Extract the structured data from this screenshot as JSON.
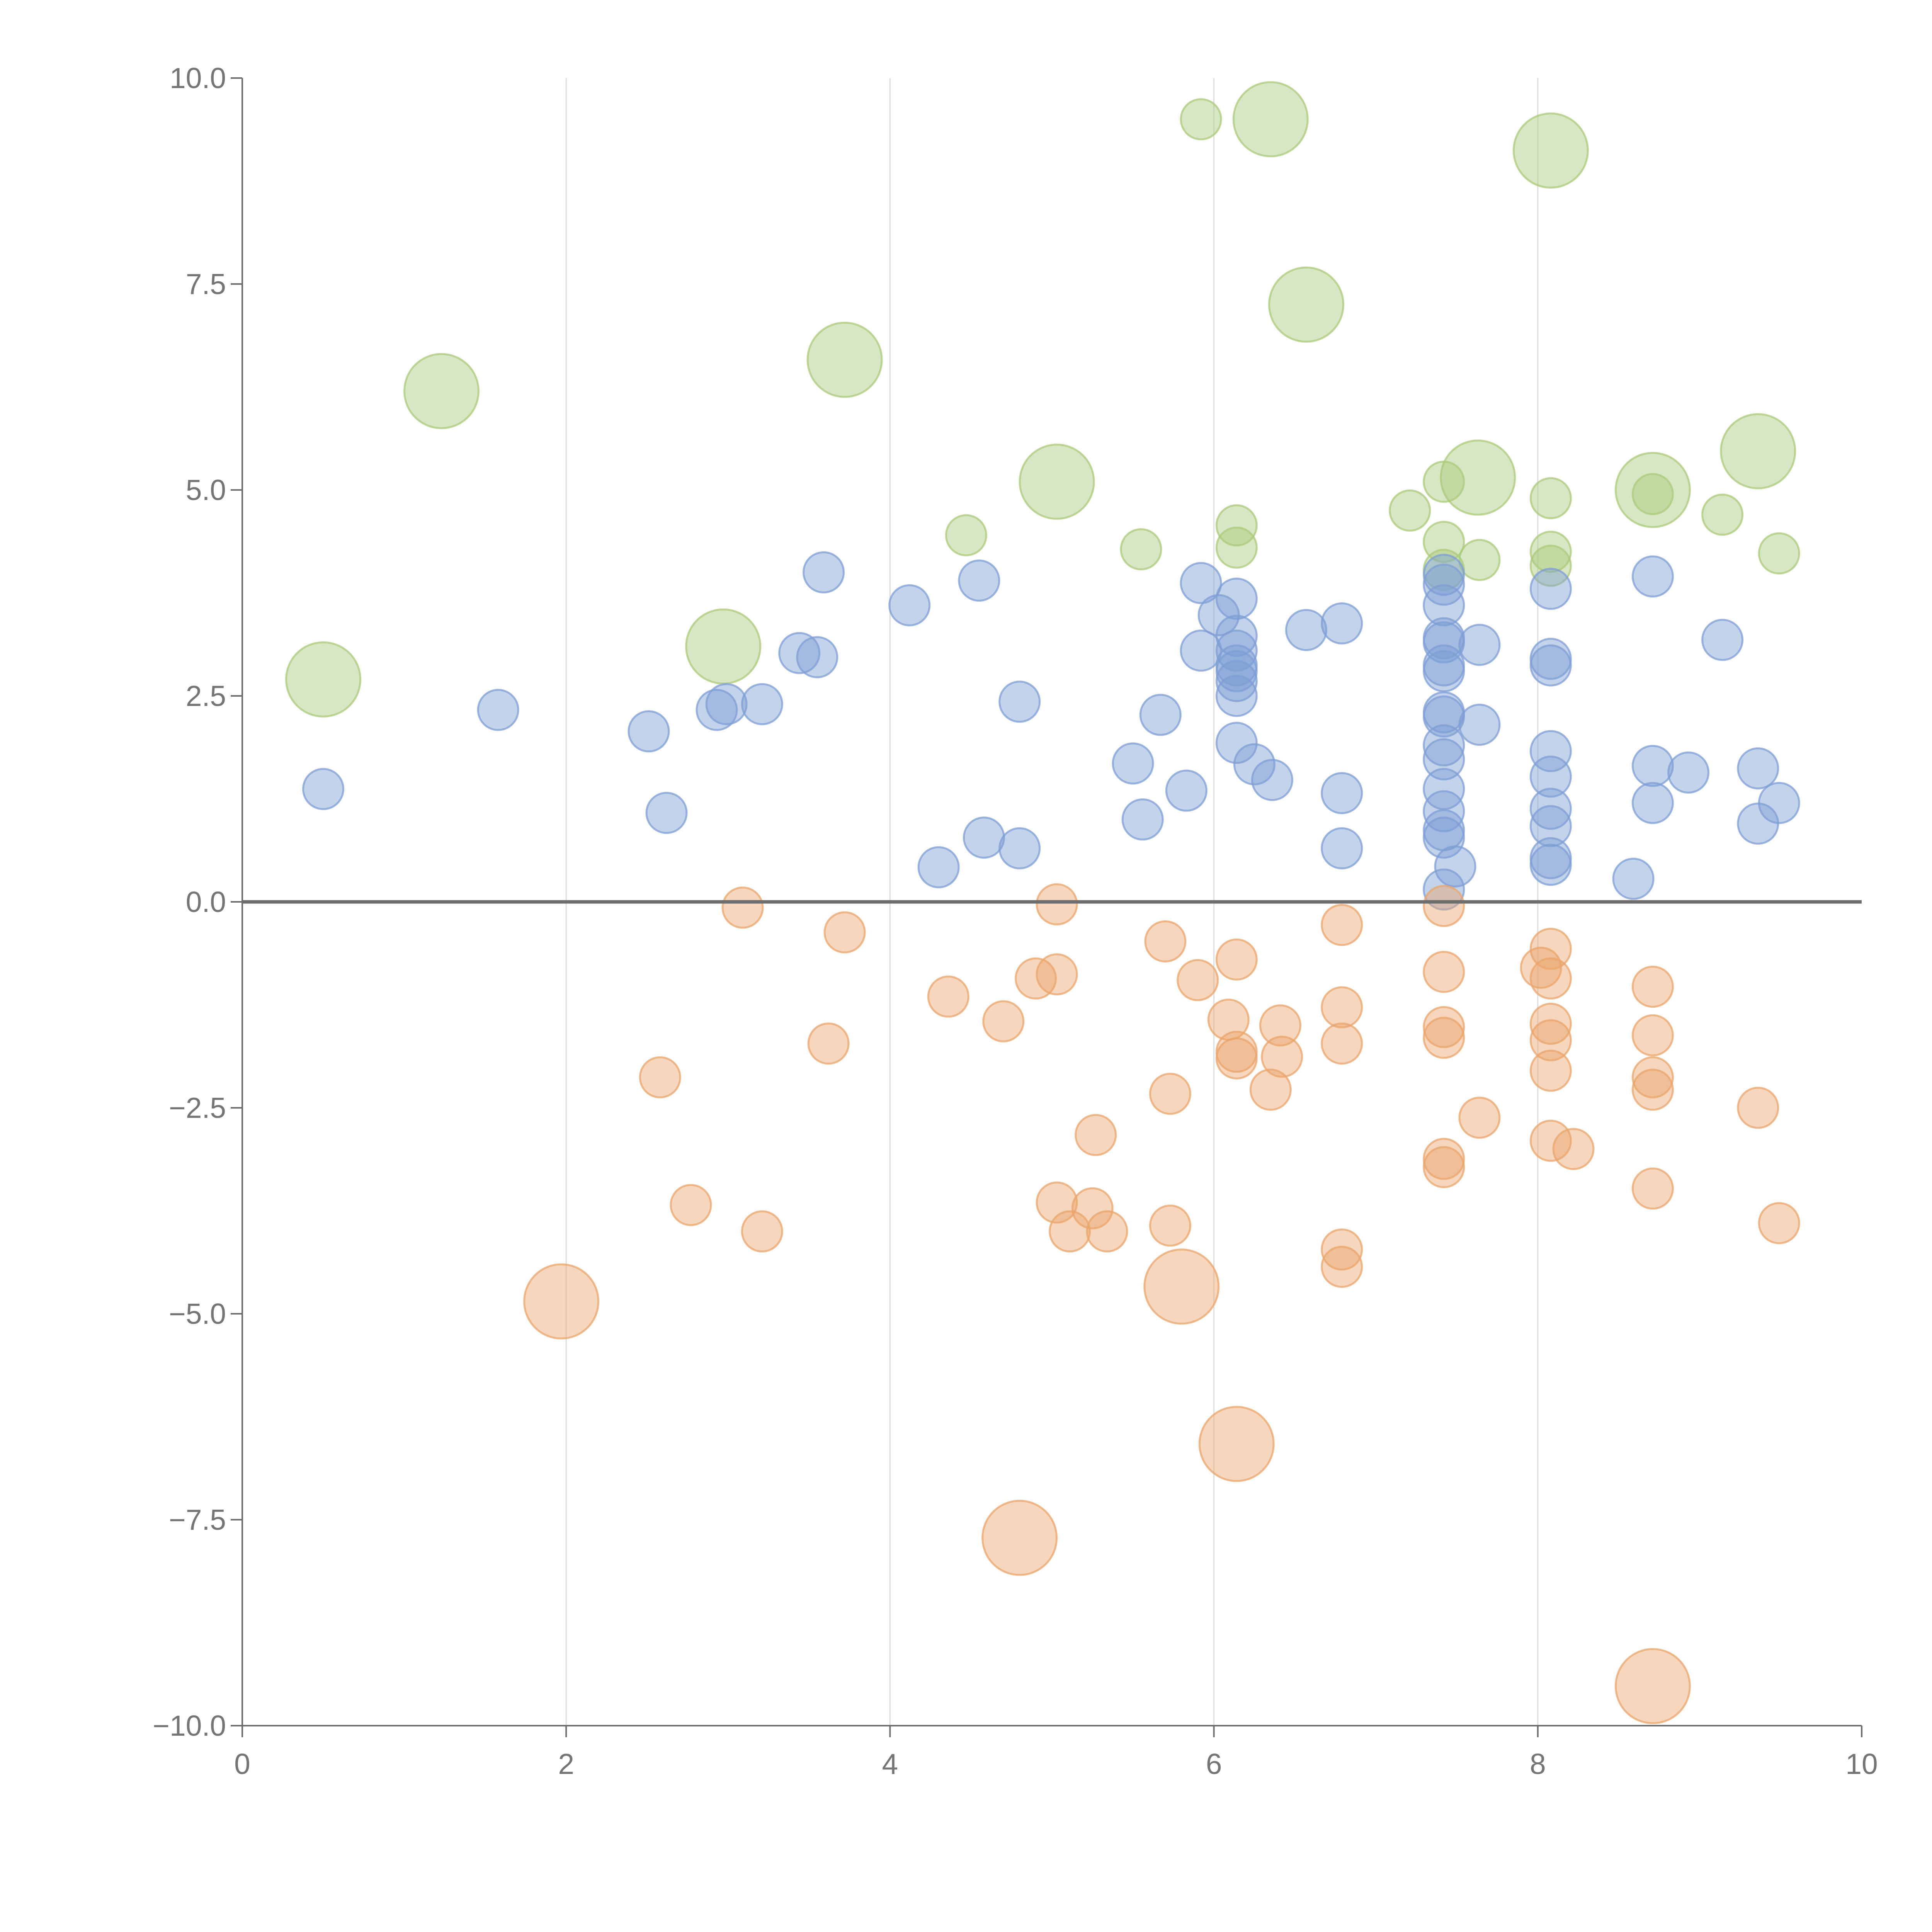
{
  "chart_data": {
    "type": "scatter",
    "title": "",
    "xlabel": "",
    "ylabel": "",
    "xlim": [
      0,
      10
    ],
    "ylim": [
      -10,
      10
    ],
    "x_ticks": [
      0,
      2,
      4,
      6,
      8,
      10
    ],
    "x_tick_labels": [
      "0",
      "2",
      "4",
      "6",
      "8",
      "10"
    ],
    "y_ticks": [
      10,
      7.5,
      5,
      2.5,
      0,
      -2.5,
      -5,
      -7.5,
      -10
    ],
    "y_tick_labels": [
      "10.0",
      "7.5",
      "5.0",
      "2.5",
      "0.0",
      "−2.5",
      "−5.0",
      "−7.5",
      "−10.0"
    ],
    "vertical_grid_at": [
      2,
      4,
      6,
      8
    ],
    "reference_line_y": 0,
    "size_legend": {
      "small": 1,
      "large": 2
    },
    "series": [
      {
        "name": "green",
        "color": "#a9c97a",
        "points": [
          {
            "x": 0.5,
            "y": 2.7,
            "size": 2
          },
          {
            "x": 1.23,
            "y": 6.2,
            "size": 2
          },
          {
            "x": 2.97,
            "y": 3.1,
            "size": 2
          },
          {
            "x": 3.72,
            "y": 6.58,
            "size": 2
          },
          {
            "x": 5.03,
            "y": 5.1,
            "size": 2
          },
          {
            "x": 6.35,
            "y": 9.5,
            "size": 2
          },
          {
            "x": 6.57,
            "y": 7.25,
            "size": 2
          },
          {
            "x": 7.63,
            "y": 5.15,
            "size": 2
          },
          {
            "x": 8.08,
            "y": 9.12,
            "size": 2
          },
          {
            "x": 8.71,
            "y": 5.0,
            "size": 2
          },
          {
            "x": 9.36,
            "y": 5.47,
            "size": 2
          },
          {
            "x": 5.92,
            "y": 9.5,
            "size": 1
          },
          {
            "x": 4.47,
            "y": 4.45,
            "size": 1
          },
          {
            "x": 5.55,
            "y": 4.28,
            "size": 1
          },
          {
            "x": 6.14,
            "y": 4.57,
            "size": 1
          },
          {
            "x": 6.14,
            "y": 4.3,
            "size": 1
          },
          {
            "x": 7.21,
            "y": 4.75,
            "size": 1
          },
          {
            "x": 7.42,
            "y": 5.1,
            "size": 1
          },
          {
            "x": 7.42,
            "y": 4.37,
            "size": 1
          },
          {
            "x": 7.42,
            "y": 4.03,
            "size": 1
          },
          {
            "x": 7.64,
            "y": 4.15,
            "size": 1
          },
          {
            "x": 8.08,
            "y": 4.9,
            "size": 1
          },
          {
            "x": 8.08,
            "y": 4.25,
            "size": 1
          },
          {
            "x": 8.08,
            "y": 4.08,
            "size": 1
          },
          {
            "x": 8.71,
            "y": 4.95,
            "size": 1
          },
          {
            "x": 9.14,
            "y": 4.7,
            "size": 1
          },
          {
            "x": 9.49,
            "y": 4.23,
            "size": 1
          }
        ]
      },
      {
        "name": "blue",
        "color": "#7d9ed4",
        "points": [
          {
            "x": 0.5,
            "y": 1.37,
            "size": 1
          },
          {
            "x": 1.58,
            "y": 2.33,
            "size": 1
          },
          {
            "x": 2.51,
            "y": 2.07,
            "size": 1
          },
          {
            "x": 2.62,
            "y": 1.08,
            "size": 1
          },
          {
            "x": 2.93,
            "y": 2.33,
            "size": 1
          },
          {
            "x": 2.99,
            "y": 2.4,
            "size": 1
          },
          {
            "x": 3.21,
            "y": 2.4,
            "size": 1
          },
          {
            "x": 3.44,
            "y": 3.02,
            "size": 1
          },
          {
            "x": 3.55,
            "y": 2.97,
            "size": 1
          },
          {
            "x": 3.59,
            "y": 4.0,
            "size": 1
          },
          {
            "x": 4.12,
            "y": 3.6,
            "size": 1
          },
          {
            "x": 4.3,
            "y": 0.42,
            "size": 1
          },
          {
            "x": 4.55,
            "y": 3.9,
            "size": 1
          },
          {
            "x": 4.58,
            "y": 0.78,
            "size": 1
          },
          {
            "x": 4.8,
            "y": 2.43,
            "size": 1
          },
          {
            "x": 4.8,
            "y": 0.65,
            "size": 1
          },
          {
            "x": 5.5,
            "y": 1.68,
            "size": 1
          },
          {
            "x": 5.56,
            "y": 1.0,
            "size": 1
          },
          {
            "x": 5.67,
            "y": 2.27,
            "size": 1
          },
          {
            "x": 5.83,
            "y": 1.35,
            "size": 1
          },
          {
            "x": 5.92,
            "y": 3.87,
            "size": 1
          },
          {
            "x": 5.92,
            "y": 3.05,
            "size": 1
          },
          {
            "x": 6.03,
            "y": 3.48,
            "size": 1
          },
          {
            "x": 6.14,
            "y": 3.68,
            "size": 1
          },
          {
            "x": 6.14,
            "y": 3.23,
            "size": 1
          },
          {
            "x": 6.14,
            "y": 3.05,
            "size": 1
          },
          {
            "x": 6.14,
            "y": 2.87,
            "size": 1
          },
          {
            "x": 6.14,
            "y": 2.8,
            "size": 1
          },
          {
            "x": 6.14,
            "y": 2.68,
            "size": 1
          },
          {
            "x": 6.14,
            "y": 2.5,
            "size": 1
          },
          {
            "x": 6.14,
            "y": 1.93,
            "size": 1
          },
          {
            "x": 6.25,
            "y": 1.67,
            "size": 1
          },
          {
            "x": 6.36,
            "y": 1.48,
            "size": 1
          },
          {
            "x": 6.57,
            "y": 3.3,
            "size": 1
          },
          {
            "x": 6.79,
            "y": 3.38,
            "size": 1
          },
          {
            "x": 6.79,
            "y": 1.32,
            "size": 1
          },
          {
            "x": 6.79,
            "y": 0.65,
            "size": 1
          },
          {
            "x": 7.42,
            "y": 3.97,
            "size": 1
          },
          {
            "x": 7.42,
            "y": 3.85,
            "size": 1
          },
          {
            "x": 7.42,
            "y": 3.6,
            "size": 1
          },
          {
            "x": 7.42,
            "y": 3.2,
            "size": 1
          },
          {
            "x": 7.42,
            "y": 3.15,
            "size": 1
          },
          {
            "x": 7.42,
            "y": 2.87,
            "size": 1
          },
          {
            "x": 7.42,
            "y": 2.8,
            "size": 1
          },
          {
            "x": 7.42,
            "y": 2.3,
            "size": 1
          },
          {
            "x": 7.42,
            "y": 2.25,
            "size": 1
          },
          {
            "x": 7.42,
            "y": 1.9,
            "size": 1
          },
          {
            "x": 7.42,
            "y": 1.73,
            "size": 1
          },
          {
            "x": 7.42,
            "y": 1.37,
            "size": 1
          },
          {
            "x": 7.42,
            "y": 1.1,
            "size": 1
          },
          {
            "x": 7.42,
            "y": 0.87,
            "size": 1
          },
          {
            "x": 7.42,
            "y": 0.78,
            "size": 1
          },
          {
            "x": 7.42,
            "y": 0.15,
            "size": 1
          },
          {
            "x": 7.49,
            "y": 0.43,
            "size": 1
          },
          {
            "x": 7.64,
            "y": 3.12,
            "size": 1
          },
          {
            "x": 7.64,
            "y": 2.15,
            "size": 1
          },
          {
            "x": 8.08,
            "y": 3.8,
            "size": 1
          },
          {
            "x": 8.08,
            "y": 2.95,
            "size": 1
          },
          {
            "x": 8.08,
            "y": 2.87,
            "size": 1
          },
          {
            "x": 8.08,
            "y": 1.83,
            "size": 1
          },
          {
            "x": 8.08,
            "y": 1.52,
            "size": 1
          },
          {
            "x": 8.08,
            "y": 1.13,
            "size": 1
          },
          {
            "x": 8.08,
            "y": 0.92,
            "size": 1
          },
          {
            "x": 8.08,
            "y": 0.53,
            "size": 1
          },
          {
            "x": 8.08,
            "y": 0.45,
            "size": 1
          },
          {
            "x": 8.59,
            "y": 0.28,
            "size": 1
          },
          {
            "x": 8.71,
            "y": 3.95,
            "size": 1
          },
          {
            "x": 8.71,
            "y": 1.65,
            "size": 1
          },
          {
            "x": 8.71,
            "y": 1.2,
            "size": 1
          },
          {
            "x": 8.93,
            "y": 1.57,
            "size": 1
          },
          {
            "x": 9.14,
            "y": 3.18,
            "size": 1
          },
          {
            "x": 9.36,
            "y": 1.62,
            "size": 1
          },
          {
            "x": 9.36,
            "y": 0.95,
            "size": 1
          },
          {
            "x": 9.49,
            "y": 1.2,
            "size": 1
          }
        ]
      },
      {
        "name": "orange",
        "color": "#eaa46b",
        "points": [
          {
            "x": 1.97,
            "y": -4.85,
            "size": 2
          },
          {
            "x": 4.8,
            "y": -7.72,
            "size": 2
          },
          {
            "x": 5.8,
            "y": -4.67,
            "size": 2
          },
          {
            "x": 6.14,
            "y": -6.58,
            "size": 2
          },
          {
            "x": 8.71,
            "y": -9.52,
            "size": 2
          },
          {
            "x": 2.58,
            "y": -2.13,
            "size": 1
          },
          {
            "x": 2.77,
            "y": -3.68,
            "size": 1
          },
          {
            "x": 3.09,
            "y": -0.07,
            "size": 1
          },
          {
            "x": 3.21,
            "y": -4.0,
            "size": 1
          },
          {
            "x": 3.62,
            "y": -1.72,
            "size": 1
          },
          {
            "x": 3.72,
            "y": -0.37,
            "size": 1
          },
          {
            "x": 4.36,
            "y": -1.15,
            "size": 1
          },
          {
            "x": 4.7,
            "y": -1.45,
            "size": 1
          },
          {
            "x": 4.9,
            "y": -0.93,
            "size": 1
          },
          {
            "x": 5.03,
            "y": -0.03,
            "size": 1
          },
          {
            "x": 5.03,
            "y": -0.88,
            "size": 1
          },
          {
            "x": 5.03,
            "y": -3.65,
            "size": 1
          },
          {
            "x": 5.11,
            "y": -4.0,
            "size": 1
          },
          {
            "x": 5.25,
            "y": -3.72,
            "size": 1
          },
          {
            "x": 5.27,
            "y": -2.83,
            "size": 1
          },
          {
            "x": 5.34,
            "y": -4.0,
            "size": 1
          },
          {
            "x": 5.7,
            "y": -0.48,
            "size": 1
          },
          {
            "x": 5.73,
            "y": -2.33,
            "size": 1
          },
          {
            "x": 5.73,
            "y": -3.93,
            "size": 1
          },
          {
            "x": 5.9,
            "y": -0.95,
            "size": 1
          },
          {
            "x": 6.09,
            "y": -1.43,
            "size": 1
          },
          {
            "x": 6.14,
            "y": -0.7,
            "size": 1
          },
          {
            "x": 6.14,
            "y": -1.82,
            "size": 1
          },
          {
            "x": 6.14,
            "y": -1.9,
            "size": 1
          },
          {
            "x": 6.35,
            "y": -2.28,
            "size": 1
          },
          {
            "x": 6.41,
            "y": -1.5,
            "size": 1
          },
          {
            "x": 6.42,
            "y": -1.88,
            "size": 1
          },
          {
            "x": 6.79,
            "y": -0.28,
            "size": 1
          },
          {
            "x": 6.79,
            "y": -1.28,
            "size": 1
          },
          {
            "x": 6.79,
            "y": -1.72,
            "size": 1
          },
          {
            "x": 6.79,
            "y": -4.22,
            "size": 1
          },
          {
            "x": 6.79,
            "y": -4.43,
            "size": 1
          },
          {
            "x": 7.42,
            "y": -0.05,
            "size": 1
          },
          {
            "x": 7.42,
            "y": -0.85,
            "size": 1
          },
          {
            "x": 7.42,
            "y": -1.52,
            "size": 1
          },
          {
            "x": 7.42,
            "y": -1.65,
            "size": 1
          },
          {
            "x": 7.42,
            "y": -3.12,
            "size": 1
          },
          {
            "x": 7.42,
            "y": -3.22,
            "size": 1
          },
          {
            "x": 7.64,
            "y": -2.62,
            "size": 1
          },
          {
            "x": 8.02,
            "y": -0.8,
            "size": 1
          },
          {
            "x": 8.08,
            "y": -0.57,
            "size": 1
          },
          {
            "x": 8.08,
            "y": -0.93,
            "size": 1
          },
          {
            "x": 8.08,
            "y": -1.48,
            "size": 1
          },
          {
            "x": 8.08,
            "y": -1.68,
            "size": 1
          },
          {
            "x": 8.08,
            "y": -2.05,
            "size": 1
          },
          {
            "x": 8.08,
            "y": -2.9,
            "size": 1
          },
          {
            "x": 8.22,
            "y": -3.0,
            "size": 1
          },
          {
            "x": 8.71,
            "y": -1.03,
            "size": 1
          },
          {
            "x": 8.71,
            "y": -1.62,
            "size": 1
          },
          {
            "x": 8.71,
            "y": -2.13,
            "size": 1
          },
          {
            "x": 8.71,
            "y": -2.28,
            "size": 1
          },
          {
            "x": 8.71,
            "y": -3.48,
            "size": 1
          },
          {
            "x": 9.36,
            "y": -2.5,
            "size": 1
          },
          {
            "x": 9.49,
            "y": -3.9,
            "size": 1
          }
        ]
      }
    ]
  }
}
